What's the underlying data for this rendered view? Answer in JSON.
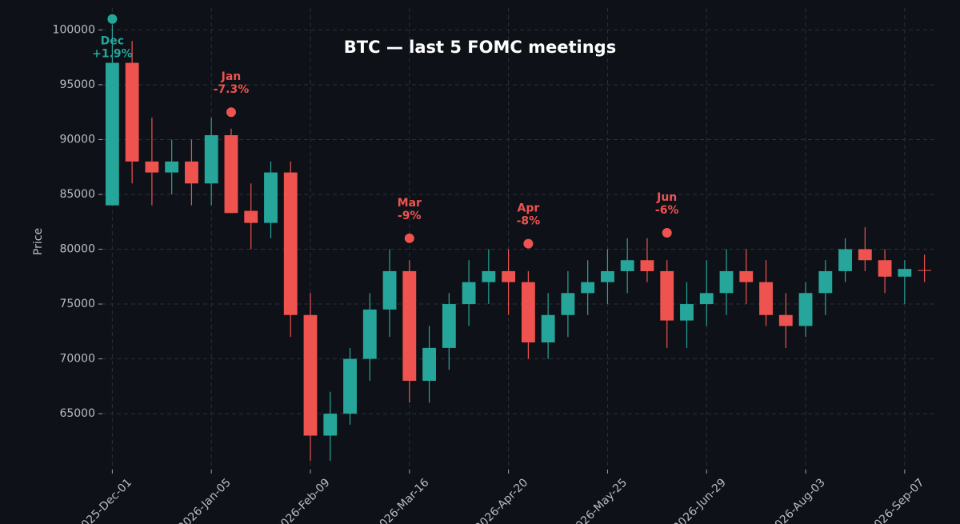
{
  "chart_data": {
    "type": "candlestick",
    "title": "BTC — last 5 FOMC meetings",
    "y_label": "Price",
    "up_color": "#26a69a",
    "down_color": "#ef5350",
    "grid": true,
    "ylim": [
      59900,
      102000
    ],
    "yticks": [
      65000,
      70000,
      75000,
      80000,
      85000,
      90000,
      95000,
      100000
    ],
    "x": [
      "2025-Dec-01",
      "2025-Dec-08",
      "2025-Dec-15",
      "2025-Dec-22",
      "2025-Dec-29",
      "2026-Jan-05",
      "2026-Jan-12",
      "2026-Jan-19",
      "2026-Jan-26",
      "2026-Feb-02",
      "2026-Feb-09",
      "2026-Feb-16",
      "2026-Feb-23",
      "2026-Mar-02",
      "2026-Mar-09",
      "2026-Mar-16",
      "2026-Mar-23",
      "2026-Mar-30",
      "2026-Apr-06",
      "2026-Apr-13",
      "2026-Apr-20",
      "2026-Apr-27",
      "2026-May-04",
      "2026-May-11",
      "2026-May-18",
      "2026-May-25",
      "2026-Jun-01",
      "2026-Jun-08",
      "2026-Jun-15",
      "2026-Jun-22",
      "2026-Jun-29",
      "2026-Jul-06",
      "2026-Jul-13",
      "2026-Jul-20",
      "2026-Jul-27",
      "2026-Aug-03",
      "2026-Aug-10",
      "2026-Aug-17",
      "2026-Aug-24",
      "2026-Aug-31",
      "2026-Sep-07",
      "2026-Sep-14"
    ],
    "xticks": [
      "2025-Dec-01",
      "2026-Jan-05",
      "2026-Feb-09",
      "2026-Mar-16",
      "2026-Apr-20",
      "2026-May-25",
      "2026-Jun-29",
      "2026-Aug-03",
      "2026-Sep-07"
    ],
    "open": [
      84000,
      97000,
      88000,
      87000,
      88000,
      86000,
      90400,
      83500,
      82400,
      87000,
      74000,
      63000,
      65000,
      70000,
      74500,
      78000,
      68000,
      71000,
      75000,
      77000,
      78000,
      77000,
      71500,
      74000,
      76000,
      77000,
      78000,
      79000,
      78000,
      73500,
      75000,
      76000,
      78000,
      77000,
      74000,
      73000,
      76000,
      78000,
      80000,
      79000,
      77500,
      78100
    ],
    "high": [
      100500,
      99000,
      92000,
      90000,
      90000,
      92000,
      91000,
      86000,
      88000,
      88000,
      76000,
      67000,
      71000,
      76000,
      80000,
      79000,
      73000,
      76000,
      79000,
      80000,
      80000,
      78000,
      76000,
      78000,
      79000,
      80000,
      81000,
      81000,
      79000,
      77000,
      79000,
      80000,
      80000,
      79000,
      76000,
      77000,
      79000,
      81000,
      82000,
      80000,
      79000,
      79500
    ],
    "low": [
      84000,
      86000,
      84000,
      85000,
      84000,
      84000,
      83300,
      80000,
      81000,
      72000,
      60700,
      60700,
      64000,
      68000,
      72000,
      66000,
      66000,
      69000,
      73000,
      75000,
      74000,
      70000,
      70000,
      72000,
      74000,
      75000,
      76000,
      77000,
      71000,
      71000,
      73000,
      74000,
      75000,
      73000,
      71000,
      72000,
      74000,
      77000,
      78000,
      76000,
      75000,
      77000
    ],
    "close": [
      97000,
      88000,
      87000,
      88000,
      86000,
      90400,
      83300,
      82400,
      87000,
      74000,
      63000,
      65000,
      70000,
      74500,
      78000,
      68000,
      71000,
      75000,
      77000,
      78000,
      77000,
      71500,
      74000,
      76000,
      77000,
      78000,
      79000,
      78000,
      73500,
      75000,
      76000,
      78000,
      77000,
      74000,
      73000,
      76000,
      78000,
      80000,
      79000,
      77500,
      78200,
      78100
    ],
    "events": [
      {
        "label": "Dec",
        "change": "+1.9%",
        "x": "2025-Dec-01",
        "price": 101000,
        "color": "#26a69a"
      },
      {
        "label": "Jan",
        "change": "-7.3%",
        "x": "2026-Jan-12",
        "price": 92500,
        "color": "#ef5350"
      },
      {
        "label": "Mar",
        "change": "-9%",
        "x": "2026-Mar-16",
        "price": 81000,
        "color": "#ef5350"
      },
      {
        "label": "Apr",
        "change": "-8%",
        "x": "2026-Apr-27",
        "price": 80500,
        "color": "#ef5350"
      },
      {
        "label": "Jun",
        "change": "-6%",
        "x": "2026-Jun-15",
        "price": 81500,
        "color": "#ef5350"
      }
    ]
  }
}
